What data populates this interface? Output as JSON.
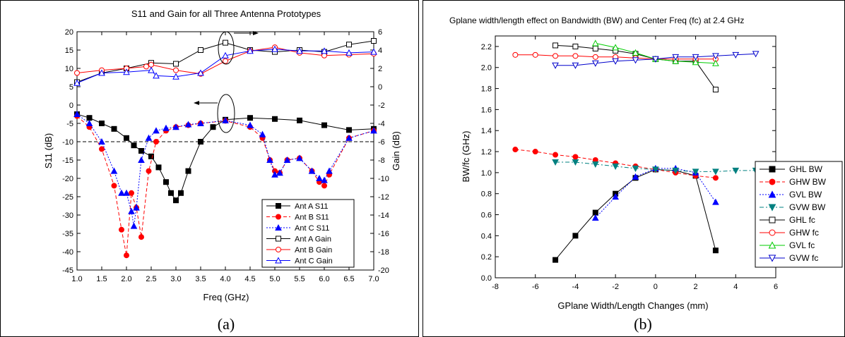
{
  "captions": [
    "(a)",
    "(b)"
  ],
  "chart_data": [
    {
      "type": "line",
      "title": "S11 and Gain for all Three Antenna Prototypes",
      "xlabel": "Freq (GHz)",
      "ylabel": "S11 (dB)",
      "y2label": "Gain (dB)",
      "xlim": [
        1.0,
        7.0
      ],
      "ylim": [
        -45,
        20
      ],
      "y2lim": [
        -20,
        6
      ],
      "xticks": [
        1.0,
        1.5,
        2.0,
        2.5,
        3.0,
        3.5,
        4.0,
        4.5,
        5.0,
        5.5,
        6.0,
        6.5,
        7.0
      ],
      "yticks": [
        -45,
        -40,
        -35,
        -30,
        -25,
        -20,
        -15,
        -10,
        -5,
        0,
        5,
        10,
        15,
        20
      ],
      "y2ticks": [
        -20,
        -18,
        -16,
        -14,
        -12,
        -10,
        -8,
        -6,
        -4,
        -2,
        0,
        2,
        4,
        6
      ],
      "xtick_labels": [
        "1.0",
        "1.5",
        "2.0",
        "2.5",
        "3.0",
        "3.5",
        "4.0",
        "4.5",
        "5.0",
        "5.5",
        "6.0",
        "6.5",
        "7.0"
      ],
      "ytick_labels": [
        "-45",
        "-40",
        "-35",
        "-30",
        "-25",
        "-20",
        "-15",
        "-10",
        "-5",
        "0",
        "5",
        "10",
        "15",
        "20"
      ],
      "y2tick_labels": [
        "-20",
        "-18",
        "-16",
        "-14",
        "-12",
        "-10",
        "-8",
        "-6",
        "-4",
        "-2",
        "0",
        "2",
        "4",
        "6"
      ],
      "threshold": -10,
      "legend_position": "bottom-right",
      "grid": false,
      "series": [
        {
          "name": "Ant A S11",
          "axis": "left",
          "color": "#000000",
          "marker": "square-filled",
          "line": "solid",
          "x": [
            1.0,
            1.25,
            1.5,
            1.75,
            2.0,
            2.15,
            2.3,
            2.5,
            2.65,
            2.8,
            2.9,
            3.0,
            3.1,
            3.25,
            3.5,
            3.75,
            4.0,
            4.5,
            5.0,
            5.5,
            6.0,
            6.5,
            7.0
          ],
          "y": [
            -2.5,
            -3.5,
            -5,
            -6.5,
            -9,
            -11,
            -12.5,
            -14,
            -17,
            -21,
            -24,
            -26,
            -24,
            -18,
            -10,
            -6,
            -4,
            -3.5,
            -3.8,
            -4.2,
            -5.5,
            -6.8,
            -6.5
          ]
        },
        {
          "name": "Ant B S11",
          "axis": "left",
          "color": "#ff0000",
          "marker": "circle-filled",
          "line": "dashed",
          "x": [
            1.0,
            1.25,
            1.5,
            1.75,
            1.9,
            2.0,
            2.1,
            2.2,
            2.3,
            2.45,
            2.6,
            2.8,
            3.0,
            3.25,
            3.5,
            4.0,
            4.5,
            4.75,
            4.9,
            5.0,
            5.1,
            5.25,
            5.5,
            5.75,
            5.9,
            6.0,
            6.1,
            6.5,
            7.0
          ],
          "y": [
            -3,
            -6,
            -12,
            -22,
            -34,
            -41,
            -24,
            -28,
            -36,
            -18,
            -10,
            -7,
            -6,
            -5.5,
            -5,
            -4.3,
            -6,
            -9,
            -15,
            -18,
            -18.5,
            -15,
            -14.5,
            -18,
            -21,
            -22,
            -19,
            -9,
            -7
          ]
        },
        {
          "name": "Ant C S11",
          "axis": "left",
          "color": "#0000ff",
          "marker": "triangle-filled",
          "line": "dotted",
          "x": [
            1.0,
            1.25,
            1.5,
            1.75,
            1.9,
            2.0,
            2.1,
            2.15,
            2.2,
            2.3,
            2.45,
            2.6,
            2.8,
            3.0,
            3.25,
            3.5,
            4.0,
            4.5,
            4.75,
            4.9,
            5.0,
            5.1,
            5.25,
            5.5,
            5.75,
            5.9,
            6.0,
            6.1,
            6.5,
            7.0
          ],
          "y": [
            -2.5,
            -5,
            -10,
            -18,
            -24,
            -24,
            -29,
            -33,
            -28,
            -15,
            -9,
            -7,
            -6.3,
            -6,
            -5.3,
            -5,
            -4.2,
            -5.5,
            -8,
            -15,
            -19,
            -18.5,
            -15,
            -14.5,
            -18,
            -20,
            -20.5,
            -18,
            -9,
            -7
          ]
        },
        {
          "name": "Ant A Gain",
          "axis": "right",
          "color": "#000000",
          "marker": "square-open",
          "line": "solid",
          "x": [
            1.0,
            1.5,
            2.0,
            2.5,
            3.0,
            3.5,
            4.0,
            4.5,
            5.0,
            5.5,
            6.0,
            6.5,
            7.0
          ],
          "y": [
            0.5,
            1.5,
            2.0,
            2.6,
            2.5,
            4.0,
            4.8,
            4.0,
            3.8,
            4.0,
            3.8,
            4.6,
            5.0
          ]
        },
        {
          "name": "Ant B Gain",
          "axis": "right",
          "color": "#ff0000",
          "marker": "circle-open",
          "line": "solid",
          "x": [
            1.0,
            1.5,
            2.0,
            2.4,
            2.5,
            3.0,
            3.5,
            4.0,
            4.5,
            5.0,
            5.5,
            6.0,
            6.5,
            7.0
          ],
          "y": [
            1.5,
            1.8,
            2.0,
            2.2,
            2.4,
            1.8,
            1.4,
            2.8,
            3.9,
            4.3,
            3.7,
            3.4,
            3.5,
            3.6
          ]
        },
        {
          "name": "Ant C Gain",
          "axis": "right",
          "color": "#0000ff",
          "marker": "triangle-open",
          "line": "solid",
          "x": [
            1.0,
            1.5,
            2.0,
            2.5,
            2.6,
            3.0,
            3.5,
            4.0,
            4.5,
            5.0,
            5.5,
            6.0,
            6.5,
            7.0
          ],
          "y": [
            0.4,
            1.5,
            1.6,
            1.8,
            1.2,
            1.1,
            1.5,
            3.4,
            3.9,
            4.1,
            3.9,
            3.9,
            3.7,
            3.8
          ]
        }
      ]
    },
    {
      "type": "line",
      "title": "Gplane width/length effect on Bandwidth (BW) and Center Freq (fc) at 2.4 GHz",
      "xlabel": "GPlane Width/Length Changes (mm)",
      "ylabel": "BW/fc (GHz)",
      "xlim": [
        -8,
        6
      ],
      "ylim": [
        0.0,
        2.3
      ],
      "xticks": [
        -8,
        -6,
        -4,
        -2,
        0,
        2,
        4,
        6
      ],
      "yticks": [
        0.0,
        0.2,
        0.4,
        0.6,
        0.8,
        1.0,
        1.2,
        1.4,
        1.6,
        1.8,
        2.0,
        2.2
      ],
      "xtick_labels": [
        "-8",
        "-6",
        "-4",
        "-2",
        "0",
        "2",
        "4",
        "6"
      ],
      "ytick_labels": [
        "0.0",
        "0.2",
        "0.4",
        "0.6",
        "0.8",
        "1.0",
        "1.2",
        "1.4",
        "1.6",
        "1.8",
        "2.0",
        "2.2"
      ],
      "legend_position": "right",
      "grid": false,
      "series": [
        {
          "name": "GHL BW",
          "color": "#000000",
          "marker": "square-filled",
          "line": "solid",
          "x": [
            -5,
            -4,
            -3,
            -2,
            -1,
            0,
            1,
            2,
            3
          ],
          "y": [
            0.17,
            0.4,
            0.62,
            0.8,
            0.95,
            1.03,
            1.02,
            0.97,
            0.26
          ]
        },
        {
          "name": "GHW BW",
          "color": "#ff0000",
          "marker": "circle-filled",
          "line": "dashed",
          "x": [
            -7,
            -6,
            -5,
            -4,
            -3,
            -2,
            -1,
            0,
            1,
            2,
            3
          ],
          "y": [
            1.22,
            1.2,
            1.17,
            1.15,
            1.12,
            1.09,
            1.06,
            1.03,
            1.0,
            0.97,
            0.95
          ]
        },
        {
          "name": "GVL BW",
          "color": "#0000ff",
          "marker": "triangle-filled",
          "line": "dotted",
          "x": [
            -3,
            -2,
            -1,
            0,
            1,
            2,
            3
          ],
          "y": [
            0.57,
            0.77,
            0.96,
            1.04,
            1.04,
            1.0,
            0.72
          ]
        },
        {
          "name": "GVW BW",
          "color": "#008080",
          "marker": "triangle-down-filled",
          "line": "dashdot",
          "x": [
            -5,
            -4,
            -3,
            -2,
            -1,
            0,
            1,
            2,
            3,
            4,
            5
          ],
          "y": [
            1.1,
            1.1,
            1.08,
            1.06,
            1.04,
            1.03,
            1.02,
            1.01,
            1.01,
            1.02,
            1.02
          ]
        },
        {
          "name": "GHL fc",
          "color": "#000000",
          "marker": "square-open",
          "line": "solid",
          "x": [
            -5,
            -4,
            -3,
            -2,
            -1,
            0,
            1,
            2,
            3
          ],
          "y": [
            2.21,
            2.2,
            2.18,
            2.16,
            2.13,
            2.08,
            2.06,
            2.06,
            1.79
          ]
        },
        {
          "name": "GHW fc",
          "color": "#ff0000",
          "marker": "circle-open",
          "line": "solid",
          "x": [
            -7,
            -6,
            -5,
            -4,
            -3,
            -2,
            -1,
            0,
            1,
            2,
            3
          ],
          "y": [
            2.12,
            2.12,
            2.11,
            2.11,
            2.1,
            2.1,
            2.09,
            2.08,
            2.08,
            2.08,
            2.08
          ]
        },
        {
          "name": "GVL fc",
          "color": "#00cc00",
          "marker": "triangle-open",
          "line": "solid",
          "x": [
            -3,
            -2,
            -1,
            0,
            1,
            2,
            3
          ],
          "y": [
            2.23,
            2.19,
            2.14,
            2.08,
            2.06,
            2.05,
            2.04
          ]
        },
        {
          "name": "GVW fc",
          "color": "#0000cc",
          "marker": "triangle-down-open",
          "line": "solid",
          "x": [
            -5,
            -4,
            -3,
            -2,
            -1,
            0,
            1,
            2,
            3,
            4,
            5
          ],
          "y": [
            2.02,
            2.02,
            2.04,
            2.06,
            2.07,
            2.08,
            2.1,
            2.1,
            2.11,
            2.12,
            2.13
          ]
        }
      ]
    }
  ]
}
